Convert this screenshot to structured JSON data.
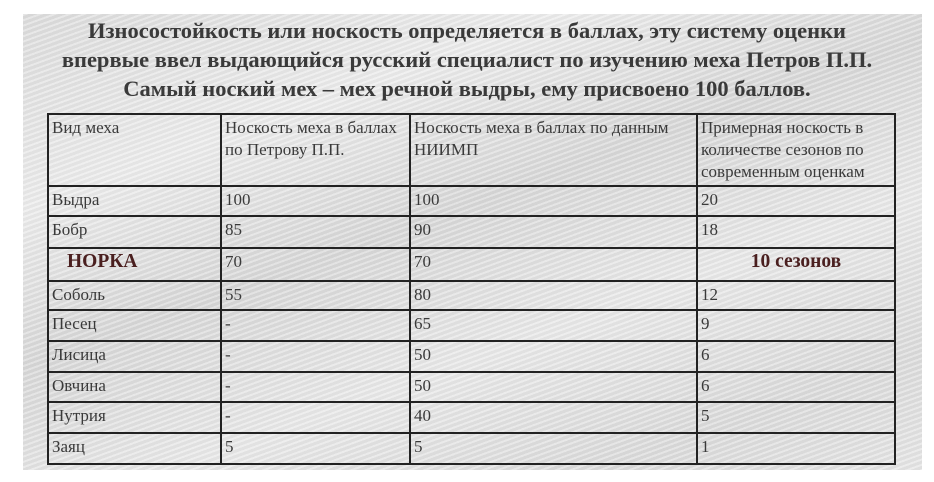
{
  "title": {
    "line1": "Износостойкость или носкость определяется в баллах, эту систему оценки",
    "line2": "впервые ввел выдающийся русский специалист по изучению меха Петров П.П.",
    "line3": "Самый ноский мех – мех речной выдры, ему присвоено 100 баллов."
  },
  "table": {
    "headers": [
      "Вид меха",
      "Носкость меха в баллах по Петрову П.П.",
      "Носкость меха в баллах по данным НИИМП",
      "Примерная носкость в количестве сезонов по современным оценкам"
    ],
    "rows": [
      [
        "Выдра",
        "100",
        "100",
        "20"
      ],
      [
        "Бобр",
        "85",
        "90",
        "18"
      ],
      [
        "НОРКА",
        "70",
        "70",
        "10 сезонов"
      ],
      [
        "Соболь",
        "55",
        "80",
        "12"
      ],
      [
        "Песец",
        "-",
        "65",
        "9"
      ],
      [
        "Лисица",
        "-",
        "50",
        "6"
      ],
      [
        "Овчина",
        "-",
        "50",
        "6"
      ],
      [
        "Нутрия",
        "-",
        "40",
        "5"
      ],
      [
        "Заяц",
        "5",
        "5",
        "1"
      ]
    ],
    "highlight_row": 2,
    "highlight_color": "#4a1f1f"
  }
}
